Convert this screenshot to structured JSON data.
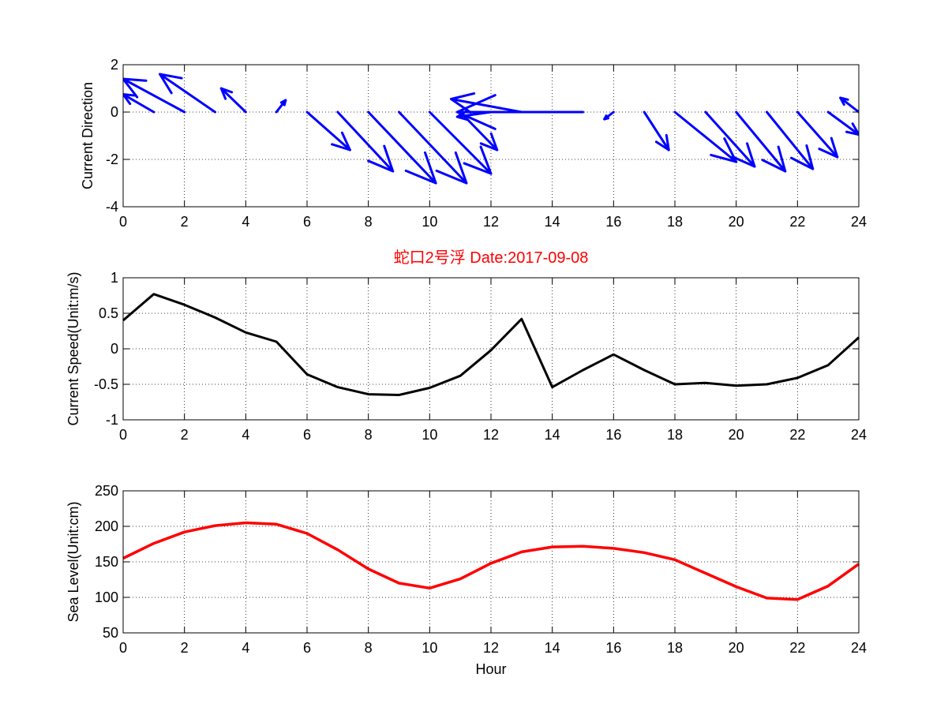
{
  "figure_title": "蛇口2号浮   Date:2017-09-08",
  "colors": {
    "direction": "#0000ff",
    "speed": "#000000",
    "sea_level": "#ff0000",
    "title": "#ff0000"
  },
  "chart_data": [
    {
      "type": "quiver",
      "ylabel": "Current Direction",
      "xlabel": "",
      "xlim": [
        0,
        24
      ],
      "ylim": [
        -4,
        2
      ],
      "xticks": [
        0,
        2,
        4,
        6,
        8,
        10,
        12,
        14,
        16,
        18,
        20,
        22,
        24
      ],
      "yticks": [
        -4,
        -2,
        0,
        2
      ],
      "grid": true,
      "vectors": [
        {
          "x": 1,
          "y": 0,
          "u": -1.0,
          "v": 0.75
        },
        {
          "x": 2,
          "y": 0,
          "u": -2.0,
          "v": 1.4
        },
        {
          "x": 3,
          "y": 0,
          "u": -1.8,
          "v": 1.6
        },
        {
          "x": 4,
          "y": 0,
          "u": -0.8,
          "v": 1.0
        },
        {
          "x": 5,
          "y": 0,
          "u": 0.3,
          "v": 0.5
        },
        {
          "x": 6,
          "y": 0,
          "u": 1.4,
          "v": -1.6
        },
        {
          "x": 7,
          "y": 0,
          "u": 1.8,
          "v": -2.5
        },
        {
          "x": 8,
          "y": 0,
          "u": 2.2,
          "v": -3.0
        },
        {
          "x": 9,
          "y": 0,
          "u": 2.2,
          "v": -3.0
        },
        {
          "x": 10,
          "y": 0,
          "u": 2.0,
          "v": -2.6
        },
        {
          "x": 11,
          "y": 0,
          "u": 1.2,
          "v": -1.6
        },
        {
          "x": 12,
          "y": 0,
          "u": -1.1,
          "v": -0.2
        },
        {
          "x": 13,
          "y": 0,
          "u": -2.3,
          "v": 0.55
        },
        {
          "x": 15,
          "y": 0,
          "u": -4.1,
          "v": 0.0
        },
        {
          "x": 16,
          "y": 0,
          "u": -0.3,
          "v": -0.3
        },
        {
          "x": 17,
          "y": 0,
          "u": 0.8,
          "v": -1.6
        },
        {
          "x": 18,
          "y": 0,
          "u": 2.0,
          "v": -2.1
        },
        {
          "x": 19,
          "y": 0,
          "u": 1.6,
          "v": -2.3
        },
        {
          "x": 20,
          "y": 0,
          "u": 1.6,
          "v": -2.5
        },
        {
          "x": 21,
          "y": 0,
          "u": 1.5,
          "v": -2.4
        },
        {
          "x": 22,
          "y": 0,
          "u": 1.3,
          "v": -1.9
        },
        {
          "x": 23,
          "y": 0,
          "u": 1.0,
          "v": -0.95
        },
        {
          "x": 24,
          "y": 0,
          "u": -0.6,
          "v": 0.6
        }
      ]
    },
    {
      "type": "line",
      "ylabel": "Current Speed(Unit:m/s)",
      "xlabel": "",
      "xlim": [
        0,
        24
      ],
      "ylim": [
        -1,
        1
      ],
      "xticks": [
        0,
        2,
        4,
        6,
        8,
        10,
        12,
        14,
        16,
        18,
        20,
        22,
        24
      ],
      "yticks": [
        -1,
        -0.5,
        0,
        0.5,
        1
      ],
      "grid": true,
      "x": [
        0,
        1,
        2,
        3,
        4,
        5,
        6,
        7,
        8,
        9,
        10,
        11,
        12,
        13,
        14,
        15,
        16,
        17,
        18,
        19,
        20,
        21,
        22,
        23,
        24
      ],
      "y": [
        0.4,
        0.77,
        0.62,
        0.44,
        0.23,
        0.1,
        -0.36,
        -0.54,
        -0.64,
        -0.65,
        -0.55,
        -0.38,
        -0.02,
        0.42,
        -0.54,
        -0.3,
        -0.08,
        -0.3,
        -0.5,
        -0.48,
        -0.52,
        -0.5,
        -0.41,
        -0.23,
        0.16
      ]
    },
    {
      "type": "line",
      "ylabel": "Sea Level(Unit:cm)",
      "xlabel": "Hour",
      "xlim": [
        0,
        24
      ],
      "ylim": [
        50,
        250
      ],
      "xticks": [
        0,
        2,
        4,
        6,
        8,
        10,
        12,
        14,
        16,
        18,
        20,
        22,
        24
      ],
      "yticks": [
        50,
        100,
        150,
        200,
        250
      ],
      "grid": true,
      "x": [
        0,
        1,
        2,
        3,
        4,
        5,
        6,
        7,
        8,
        9,
        10,
        11,
        12,
        13,
        14,
        15,
        16,
        17,
        18,
        19,
        20,
        21,
        22,
        23,
        24
      ],
      "y": [
        155,
        176,
        192,
        201,
        205,
        203,
        190,
        167,
        140,
        120,
        113,
        126,
        148,
        164,
        171,
        172,
        169,
        163,
        153,
        134,
        115,
        99,
        97,
        116,
        147
      ]
    }
  ]
}
